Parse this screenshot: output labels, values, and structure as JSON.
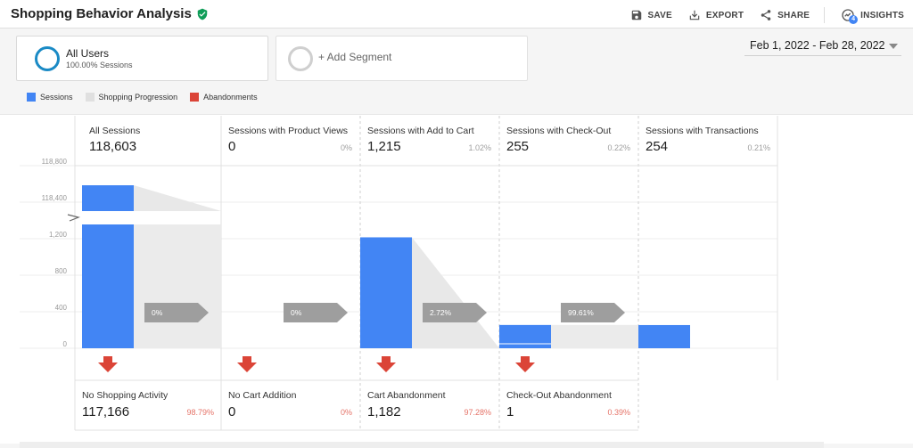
{
  "header": {
    "title": "Shopping Behavior Analysis",
    "actions": {
      "save": "SAVE",
      "export": "EXPORT",
      "share": "SHARE",
      "insights": "INSIGHTS",
      "insights_badge": "4"
    }
  },
  "segments": {
    "active": {
      "name": "All Users",
      "sub": "100.00% Sessions"
    },
    "add_label": "+ Add Segment"
  },
  "date_range": "Feb 1, 2022 - Feb 28, 2022",
  "legend": [
    {
      "label": "Sessions",
      "color": "#4285f4"
    },
    {
      "label": "Shopping Progression",
      "color": "#e0e0e0"
    },
    {
      "label": "Abandonments",
      "color": "#db4437"
    }
  ],
  "y_ticks": [
    "118,800",
    "118,400",
    "1,200",
    "800",
    "400",
    "0"
  ],
  "stages": [
    {
      "label": "All Sessions",
      "value": "118,603",
      "pct": ""
    },
    {
      "label": "Sessions with Product Views",
      "value": "0",
      "pct": "0%"
    },
    {
      "label": "Sessions with Add to Cart",
      "value": "1,215",
      "pct": "1.02%"
    },
    {
      "label": "Sessions with Check-Out",
      "value": "255",
      "pct": "0.22%"
    },
    {
      "label": "Sessions with Transactions",
      "value": "254",
      "pct": "0.21%"
    }
  ],
  "progression": [
    "0%",
    "0%",
    "2.72%",
    "99.61%"
  ],
  "abandonments": [
    {
      "label": "No Shopping Activity",
      "value": "117,166",
      "pct": "98.79%"
    },
    {
      "label": "No Cart Addition",
      "value": "0",
      "pct": "0%"
    },
    {
      "label": "Cart Abandonment",
      "value": "1,182",
      "pct": "97.28%"
    },
    {
      "label": "Check-Out Abandonment",
      "value": "1",
      "pct": "0.39%"
    }
  ],
  "chart_data": {
    "type": "bar",
    "categories": [
      "All Sessions",
      "Sessions with Product Views",
      "Sessions with Add to Cart",
      "Sessions with Check-Out",
      "Sessions with Transactions"
    ],
    "series": [
      {
        "name": "Sessions",
        "values": [
          118603,
          0,
          1215,
          255,
          254
        ]
      }
    ],
    "ylim": [
      0,
      118800
    ],
    "axis_break": true
  },
  "colors": {
    "sessions": "#4285f4",
    "progression": "#e0e0e0",
    "abandon": "#db4437",
    "arrow_gray": "#9e9e9e"
  }
}
